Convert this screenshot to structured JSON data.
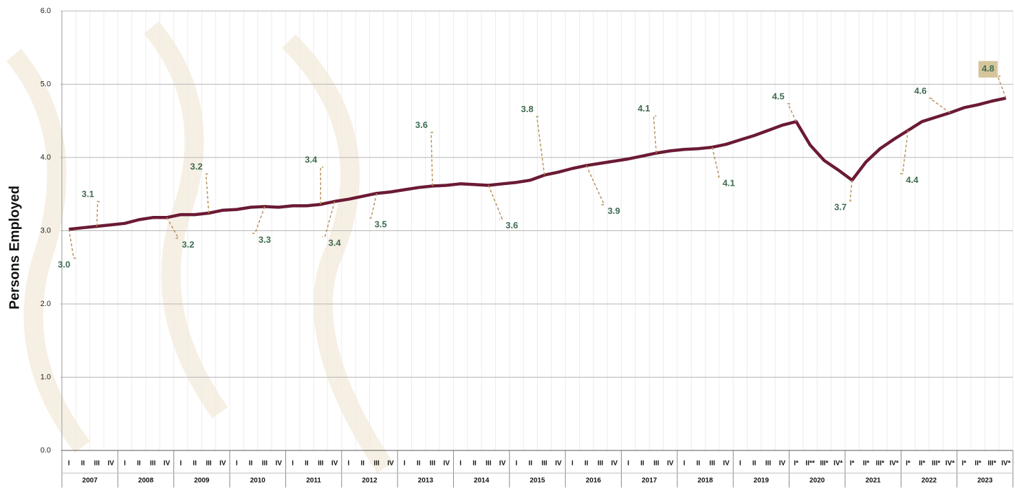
{
  "chart_data": {
    "type": "line",
    "y_label": "Persons Employed",
    "ylim": [
      0,
      6
    ],
    "yticks": [
      {
        "value": 0,
        "label": "0.0"
      },
      {
        "value": 1,
        "label": "1.0"
      },
      {
        "value": 2,
        "label": "2.0"
      },
      {
        "value": 3,
        "label": "3.0"
      },
      {
        "value": 4,
        "label": "4.0"
      },
      {
        "value": 5,
        "label": "5.0"
      },
      {
        "value": 6,
        "label": "6.0"
      }
    ],
    "grid": true,
    "years": [
      "2007",
      "2008",
      "2009",
      "2010",
      "2011",
      "2012",
      "2013",
      "2014",
      "2015",
      "2016",
      "2017",
      "2018",
      "2019",
      "2020",
      "2021",
      "2022",
      "2023"
    ],
    "categories": [
      "I",
      "II",
      "III",
      "IV",
      "I",
      "II",
      "III",
      "IV",
      "I",
      "II",
      "III",
      "IV",
      "I",
      "II",
      "III",
      "IV",
      "I",
      "II",
      "III",
      "IV",
      "I",
      "II",
      "III",
      "IV",
      "I",
      "II",
      "III",
      "IV",
      "I",
      "II",
      "III",
      "IV",
      "I",
      "II",
      "III",
      "IV",
      "I",
      "II",
      "III",
      "IV",
      "I",
      "II",
      "III",
      "IV",
      "I",
      "II",
      "III",
      "IV",
      "I",
      "II",
      "III",
      "IV",
      "I*",
      "II**",
      "III*",
      "IV*",
      "I*",
      "II*",
      "III*",
      "IV*",
      "I*",
      "II*",
      "III*",
      "IV*",
      "I*",
      "II*",
      "III*",
      "IV*"
    ],
    "series": [
      {
        "name": "Persons Employed",
        "color": "#6b1a35",
        "values": [
          3.02,
          3.04,
          3.06,
          3.08,
          3.1,
          3.15,
          3.18,
          3.18,
          3.22,
          3.22,
          3.24,
          3.28,
          3.29,
          3.32,
          3.33,
          3.32,
          3.34,
          3.34,
          3.36,
          3.4,
          3.43,
          3.47,
          3.51,
          3.53,
          3.56,
          3.59,
          3.61,
          3.62,
          3.64,
          3.63,
          3.62,
          3.64,
          3.66,
          3.69,
          3.76,
          3.8,
          3.85,
          3.89,
          3.92,
          3.95,
          3.98,
          4.02,
          4.06,
          4.09,
          4.11,
          4.12,
          4.14,
          4.18,
          4.24,
          4.3,
          4.37,
          4.44,
          4.49,
          4.17,
          3.96,
          3.83,
          3.69,
          3.94,
          4.12,
          4.25,
          4.37,
          4.49,
          4.55,
          4.61,
          4.68,
          4.72,
          4.77,
          4.81
        ],
        "value_labels": [
          "3.0",
          null,
          "3.1",
          null,
          null,
          null,
          null,
          "3.2",
          null,
          null,
          "3.2",
          null,
          null,
          null,
          "3.3",
          null,
          null,
          null,
          "3.4",
          "3.4",
          null,
          null,
          "3.5",
          null,
          null,
          null,
          "3.6",
          null,
          null,
          null,
          "3.6",
          null,
          null,
          null,
          "3.8",
          null,
          null,
          "3.9",
          null,
          null,
          null,
          null,
          "4.1",
          null,
          null,
          null,
          "4.1",
          null,
          null,
          null,
          null,
          null,
          "4.5",
          null,
          null,
          null,
          "3.7",
          null,
          null,
          null,
          "4.4",
          null,
          null,
          "4.6",
          null,
          null,
          null,
          "4.8"
        ]
      }
    ]
  }
}
